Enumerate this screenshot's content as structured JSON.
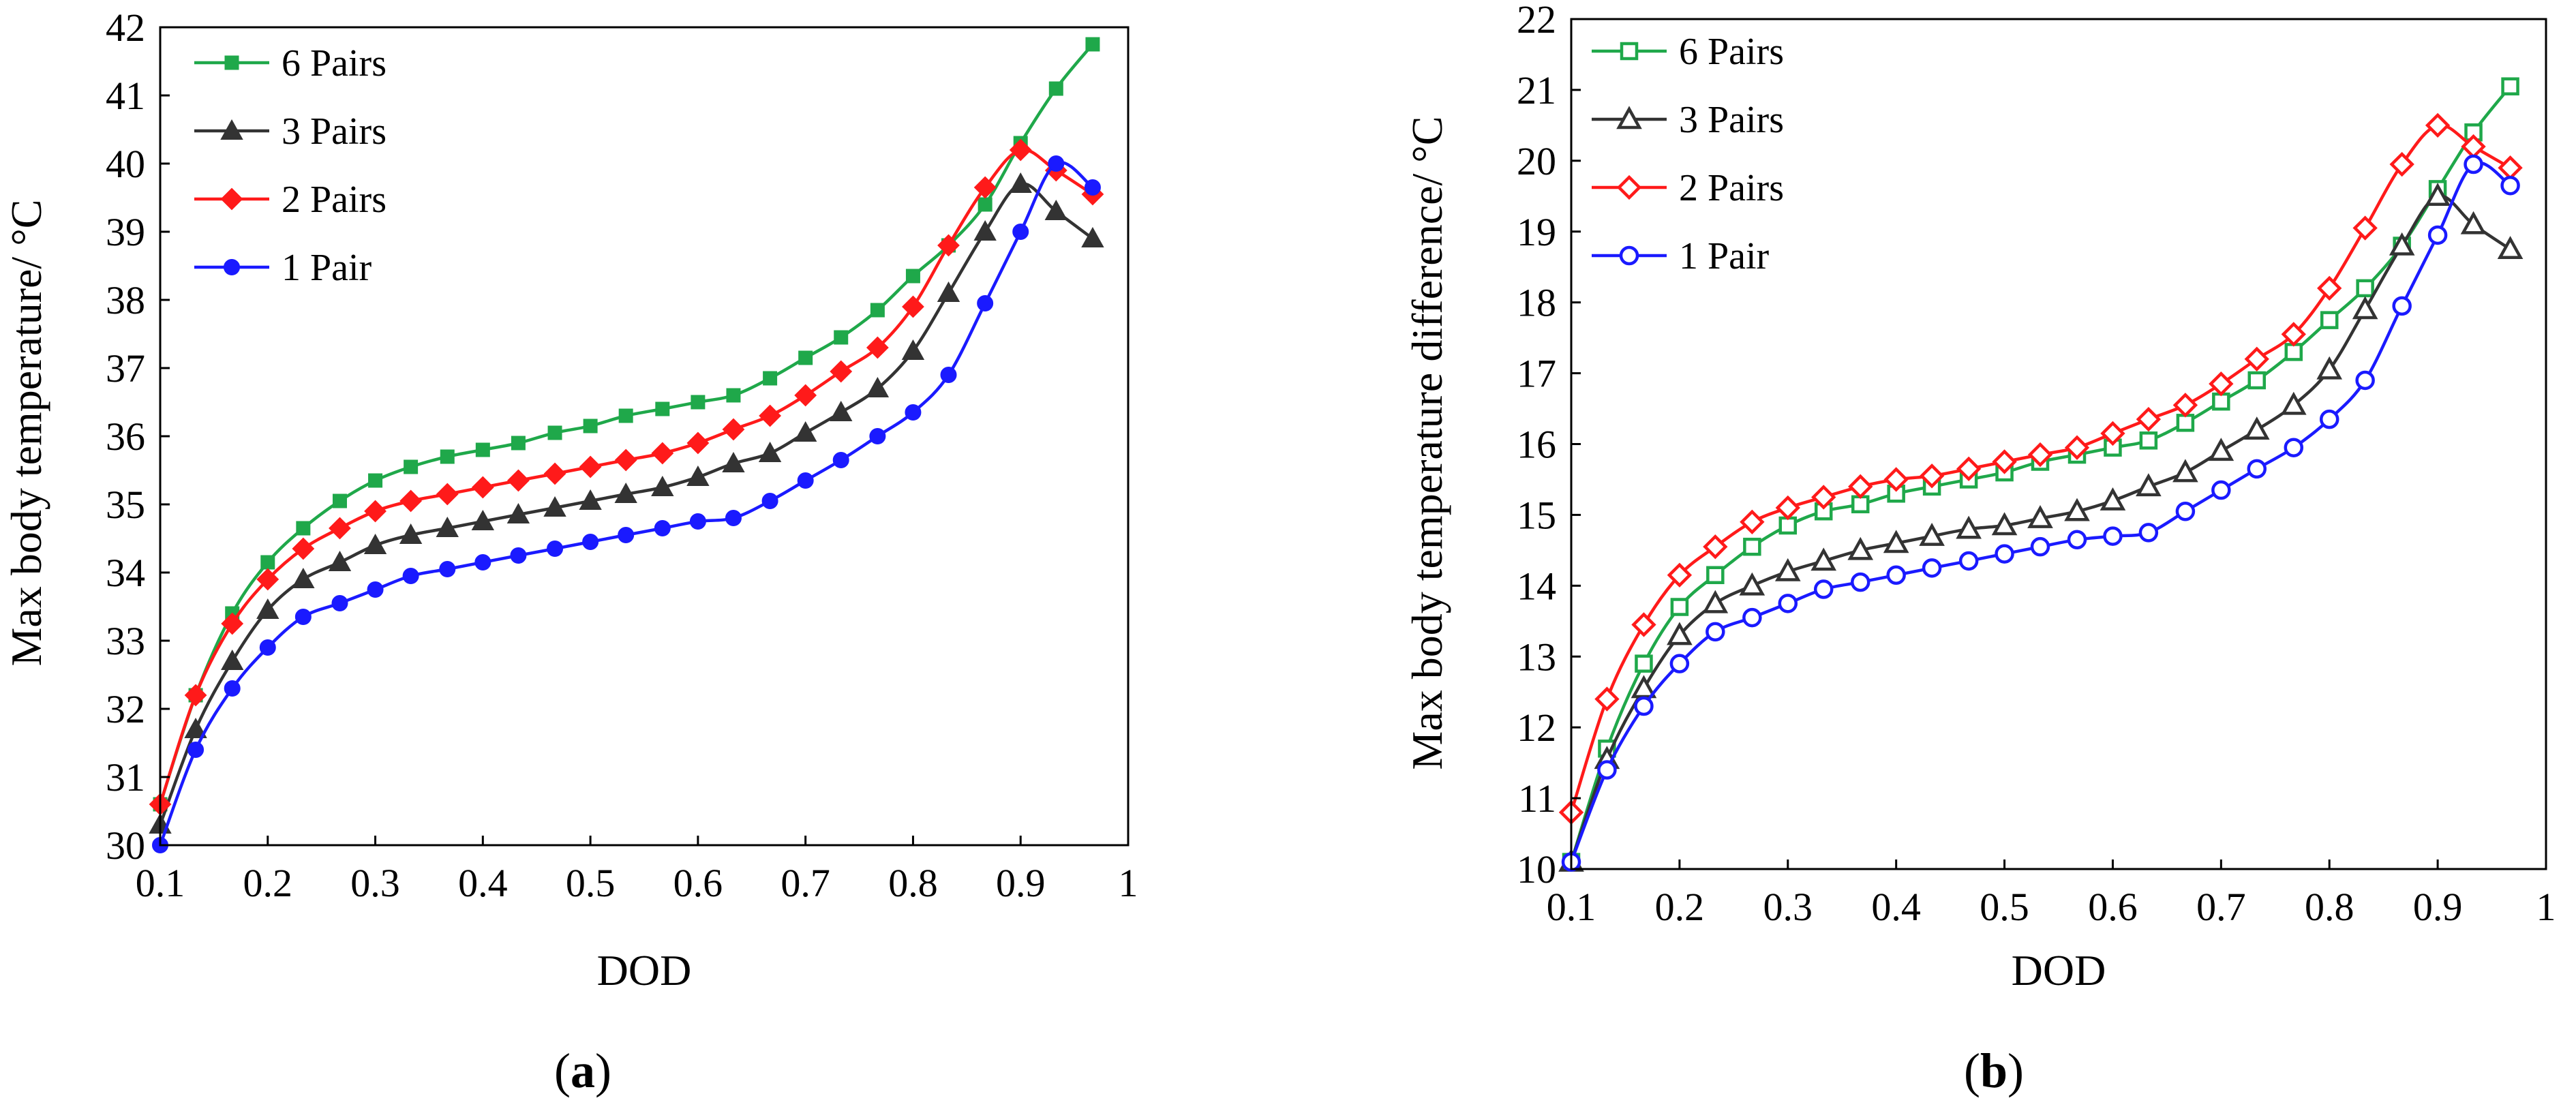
{
  "panels": [
    {
      "caption": "a",
      "chart_data": {
        "type": "line",
        "xlabel": "DOD",
        "ylabel": "Max body temperature/ °C",
        "xlim": [
          0.1,
          1
        ],
        "ylim": [
          30,
          42
        ],
        "xticks": [
          0.1,
          0.2,
          0.3,
          0.4,
          0.5,
          0.6,
          0.7,
          0.8,
          0.9,
          1
        ],
        "xtick_labels": [
          "0.1",
          "0.2",
          "0.3",
          "0.4",
          "0.5",
          "0.6",
          "0.7",
          "0.8",
          "0.9",
          "1"
        ],
        "yticks": [
          30,
          31,
          32,
          33,
          34,
          35,
          36,
          37,
          38,
          39,
          40,
          41,
          42
        ],
        "ytick_labels": [
          "30",
          "31",
          "32",
          "33",
          "34",
          "35",
          "36",
          "37",
          "38",
          "39",
          "40",
          "41",
          "42"
        ],
        "legend_position": "top-left",
        "grid": false,
        "x": [
          0.1,
          0.133,
          0.167,
          0.2,
          0.233,
          0.267,
          0.3,
          0.333,
          0.367,
          0.4,
          0.433,
          0.467,
          0.5,
          0.533,
          0.567,
          0.6,
          0.633,
          0.667,
          0.7,
          0.733,
          0.767,
          0.8,
          0.833,
          0.867,
          0.9,
          0.933,
          0.967
        ],
        "series": [
          {
            "name": "6 Pairs",
            "color": "#1fa84a",
            "marker": "square-filled",
            "values": [
              30.6,
              32.2,
              33.4,
              34.15,
              34.65,
              35.05,
              35.35,
              35.55,
              35.7,
              35.8,
              35.9,
              36.05,
              36.15,
              36.3,
              36.4,
              36.5,
              36.6,
              36.85,
              37.15,
              37.45,
              37.85,
              38.35,
              38.8,
              39.4,
              40.3,
              41.1,
              41.75
            ]
          },
          {
            "name": "3 Pairs",
            "color": "#333333",
            "marker": "triangle-filled",
            "values": [
              30.3,
              31.7,
              32.7,
              33.45,
              33.9,
              34.15,
              34.4,
              34.55,
              34.65,
              34.75,
              34.85,
              34.95,
              35.05,
              35.15,
              35.25,
              35.4,
              35.6,
              35.75,
              36.05,
              36.35,
              36.7,
              37.25,
              38.1,
              39.0,
              39.7,
              39.3,
              38.9
            ]
          },
          {
            "name": "2 Pairs",
            "color": "#ff1a1a",
            "marker": "diamond-filled",
            "values": [
              30.6,
              32.2,
              33.25,
              33.9,
              34.35,
              34.65,
              34.9,
              35.05,
              35.15,
              35.25,
              35.35,
              35.45,
              35.55,
              35.65,
              35.75,
              35.9,
              36.1,
              36.3,
              36.6,
              36.95,
              37.3,
              37.9,
              38.8,
              39.65,
              40.2,
              39.9,
              39.55
            ]
          },
          {
            "name": "1 Pair",
            "color": "#1a1aff",
            "marker": "circle-filled",
            "values": [
              30.0,
              31.4,
              32.3,
              32.9,
              33.35,
              33.55,
              33.75,
              33.95,
              34.05,
              34.15,
              34.25,
              34.35,
              34.45,
              34.55,
              34.65,
              34.75,
              34.8,
              35.05,
              35.35,
              35.65,
              36.0,
              36.35,
              36.9,
              37.95,
              39.0,
              40.0,
              39.65
            ]
          }
        ]
      }
    },
    {
      "caption": "b",
      "chart_data": {
        "type": "line",
        "xlabel": "DOD",
        "ylabel": "Max body temperature  difference/ °C",
        "xlim": [
          0.1,
          1
        ],
        "ylim": [
          10,
          22
        ],
        "xticks": [
          0.1,
          0.2,
          0.3,
          0.4,
          0.5,
          0.6,
          0.7,
          0.8,
          0.9,
          1
        ],
        "xtick_labels": [
          "0.1",
          "0.2",
          "0.3",
          "0.4",
          "0.5",
          "0.6",
          "0.7",
          "0.8",
          "0.9",
          "1"
        ],
        "yticks": [
          10,
          11,
          12,
          13,
          14,
          15,
          16,
          17,
          18,
          19,
          20,
          21,
          22
        ],
        "ytick_labels": [
          "10",
          "11",
          "12",
          "13",
          "14",
          "15",
          "16",
          "17",
          "18",
          "19",
          "20",
          "21",
          "22"
        ],
        "legend_position": "top-left",
        "grid": false,
        "x": [
          0.1,
          0.133,
          0.167,
          0.2,
          0.233,
          0.267,
          0.3,
          0.333,
          0.367,
          0.4,
          0.433,
          0.467,
          0.5,
          0.533,
          0.567,
          0.6,
          0.633,
          0.667,
          0.7,
          0.733,
          0.767,
          0.8,
          0.833,
          0.867,
          0.9,
          0.933,
          0.967
        ],
        "series": [
          {
            "name": "6 Pairs",
            "color": "#1fa84a",
            "marker": "square-open",
            "values": [
              10.1,
              11.7,
              12.9,
              13.7,
              14.15,
              14.55,
              14.85,
              15.05,
              15.15,
              15.3,
              15.4,
              15.5,
              15.6,
              15.75,
              15.85,
              15.95,
              16.05,
              16.3,
              16.6,
              16.9,
              17.3,
              17.75,
              18.2,
              18.8,
              19.6,
              20.4,
              21.05
            ]
          },
          {
            "name": "3 Pairs",
            "color": "#333333",
            "marker": "triangle-open",
            "values": [
              10.1,
              11.55,
              12.55,
              13.3,
              13.75,
              14.0,
              14.2,
              14.35,
              14.5,
              14.6,
              14.7,
              14.8,
              14.85,
              14.95,
              15.05,
              15.2,
              15.4,
              15.6,
              15.9,
              16.2,
              16.55,
              17.05,
              17.9,
              18.8,
              19.5,
              19.1,
              18.75
            ]
          },
          {
            "name": "2 Pairs",
            "color": "#ff1a1a",
            "marker": "diamond-open",
            "values": [
              10.8,
              12.4,
              13.45,
              14.15,
              14.55,
              14.9,
              15.1,
              15.25,
              15.4,
              15.5,
              15.55,
              15.65,
              15.75,
              15.85,
              15.95,
              16.15,
              16.35,
              16.55,
              16.85,
              17.2,
              17.55,
              18.2,
              19.05,
              19.95,
              20.5,
              20.2,
              19.9
            ]
          },
          {
            "name": "1 Pair",
            "color": "#1a1aff",
            "marker": "circle-open",
            "values": [
              10.1,
              11.4,
              12.3,
              12.9,
              13.35,
              13.55,
              13.75,
              13.95,
              14.05,
              14.15,
              14.25,
              14.35,
              14.45,
              14.55,
              14.65,
              14.7,
              14.75,
              15.05,
              15.35,
              15.65,
              15.95,
              16.35,
              16.9,
              17.95,
              18.95,
              19.95,
              19.65
            ]
          }
        ]
      }
    }
  ]
}
